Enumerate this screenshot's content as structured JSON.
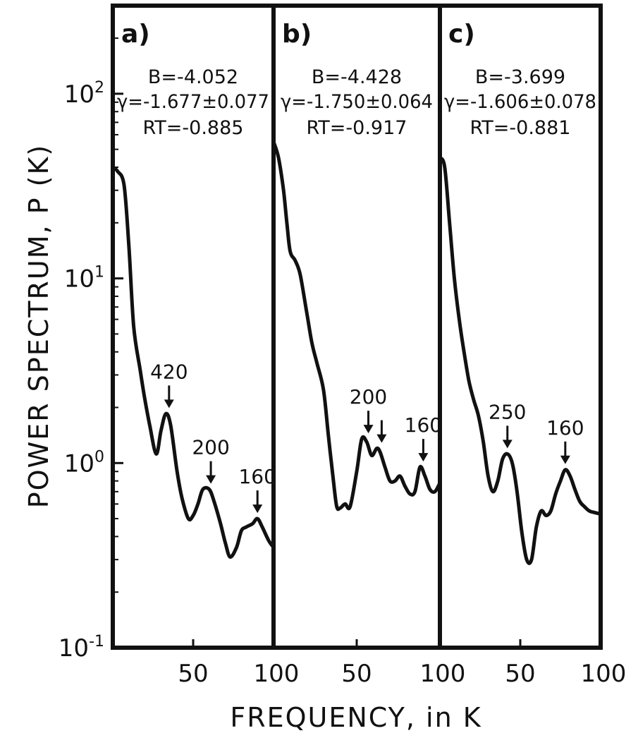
{
  "chart_data": {
    "type": "line",
    "xlabel": "FREQUENCY, in K",
    "ylabel": "POWER SPECTRUM, P (K)",
    "yscale": "log",
    "ylim": [
      0.1,
      300
    ],
    "y_ticks": [
      {
        "value": 100,
        "base": "10",
        "exp": "2"
      },
      {
        "value": 10,
        "base": "10",
        "exp": "1"
      },
      {
        "value": 1,
        "base": "10",
        "exp": "0"
      },
      {
        "value": 0.1,
        "base": "10",
        "exp": "-1"
      }
    ],
    "xlim": [
      0,
      100
    ],
    "x_ticks": [
      {
        "value": 50,
        "label": "50"
      },
      {
        "value": 100,
        "label": "100"
      }
    ],
    "panels": [
      {
        "letter": "a)",
        "B": "B=-4.052",
        "gamma": "γ=-1.677±0.077",
        "RT": "RT=-0.885",
        "x": [
          0,
          3,
          7,
          10,
          13,
          17,
          20,
          23,
          27,
          30,
          33,
          36,
          40,
          43,
          47,
          50,
          53,
          56,
          60,
          63,
          67,
          70,
          73,
          77,
          80,
          83,
          87,
          90,
          93,
          97,
          100
        ],
        "y": [
          40,
          38,
          32,
          15,
          5.5,
          3.2,
          2.2,
          1.6,
          1.12,
          1.5,
          1.85,
          1.6,
          0.9,
          0.65,
          0.5,
          0.52,
          0.6,
          0.72,
          0.72,
          0.62,
          0.47,
          0.37,
          0.31,
          0.35,
          0.43,
          0.45,
          0.47,
          0.5,
          0.45,
          0.38,
          0.35
        ],
        "peaks": [
          {
            "label": "420",
            "x": 35,
            "y": 1.85
          },
          {
            "label": "200",
            "x": 61,
            "y": 0.72
          },
          {
            "label": "160",
            "x": 90,
            "y": 0.5
          }
        ]
      },
      {
        "letter": "b)",
        "B": "B=-4.428",
        "gamma": "γ=-1.750±0.064",
        "RT": "RT=-0.917",
        "x": [
          0,
          3,
          6,
          8,
          10,
          13,
          16,
          20,
          23,
          26,
          30,
          33,
          36,
          38,
          40,
          43,
          46,
          50,
          53,
          56,
          59,
          62,
          64,
          67,
          70,
          73,
          76,
          79,
          82,
          85,
          88,
          91,
          94,
          97,
          100
        ],
        "y": [
          55,
          45,
          30,
          20,
          14,
          12.5,
          10.5,
          6.5,
          4.5,
          3.5,
          2.5,
          1.4,
          0.8,
          0.58,
          0.57,
          0.6,
          0.58,
          0.9,
          1.35,
          1.3,
          1.1,
          1.2,
          1.15,
          0.95,
          0.8,
          0.8,
          0.85,
          0.75,
          0.68,
          0.7,
          0.95,
          0.85,
          0.72,
          0.7,
          0.78
        ],
        "peaks": [
          {
            "label": "200",
            "x": 57,
            "y": 1.35
          },
          {
            "label": "",
            "x": 65,
            "y": 1.2
          },
          {
            "label": "160",
            "x": 90,
            "y": 0.95
          }
        ]
      },
      {
        "letter": "c)",
        "B": "B=-3.699",
        "gamma": "γ=-1.606±0.078",
        "RT": "RT=-0.881",
        "x": [
          0,
          3,
          6,
          9,
          12,
          15,
          18,
          21,
          24,
          27,
          30,
          33,
          36,
          39,
          42,
          45,
          48,
          51,
          54,
          57,
          60,
          63,
          66,
          69,
          72,
          75,
          78,
          81,
          84,
          87,
          90,
          93,
          96,
          100
        ],
        "y": [
          45,
          40,
          20,
          10,
          6,
          4,
          2.8,
          2.2,
          1.8,
          1.3,
          0.85,
          0.7,
          0.8,
          1.05,
          1.12,
          1.0,
          0.7,
          0.42,
          0.3,
          0.3,
          0.45,
          0.55,
          0.52,
          0.55,
          0.68,
          0.8,
          0.92,
          0.85,
          0.72,
          0.62,
          0.58,
          0.55,
          0.54,
          0.53
        ],
        "peaks": [
          {
            "label": "250",
            "x": 42,
            "y": 1.12
          },
          {
            "label": "160",
            "x": 78,
            "y": 0.92
          }
        ]
      }
    ]
  }
}
